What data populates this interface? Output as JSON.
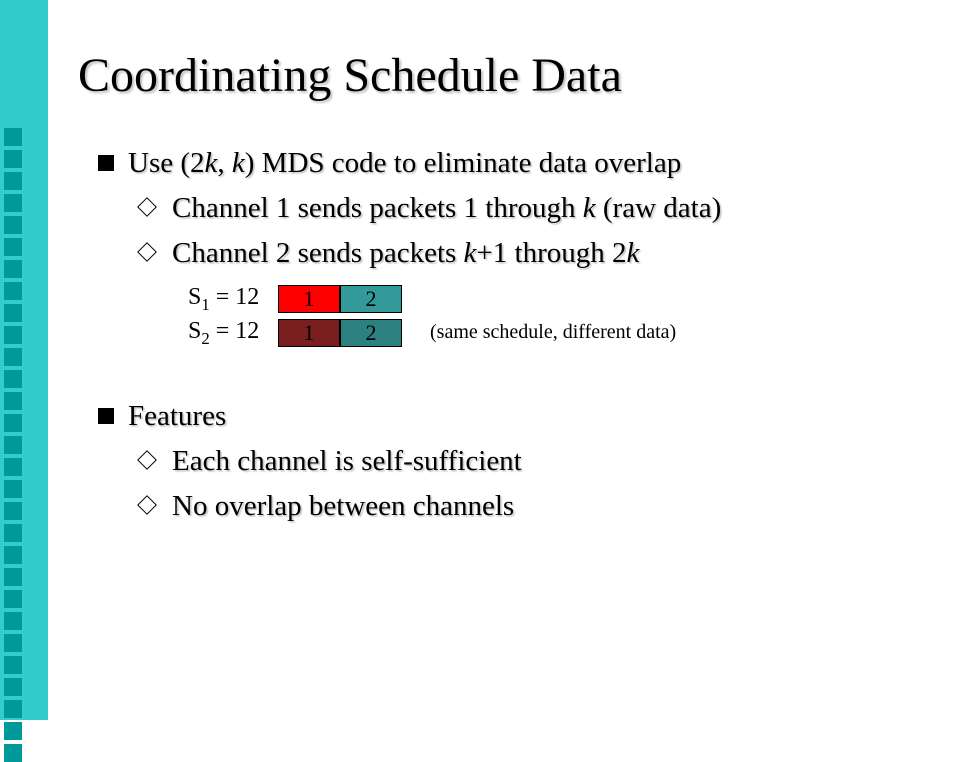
{
  "title": "Coordinating Schedule Data",
  "bullets": {
    "b1": "Use (2",
    "b1_k1": "k",
    "b1_mid": ", ",
    "b1_k2": "k",
    "b1_end": ") MDS code to eliminate data overlap",
    "b1a_pre": "Channel 1 sends packets 1 through ",
    "b1a_k": "k",
    "b1a_end": " (raw data)",
    "b1b_pre": "Channel 2 sends packets ",
    "b1b_k1": "k",
    "b1b_mid": "+1 through 2",
    "b1b_k2": "k",
    "b2": "Features",
    "b2a": "Each channel is self-sufficient",
    "b2b": "No overlap between channels"
  },
  "diagram": {
    "s1_label_pre": "S",
    "s1_sub": "1",
    "s1_eq": " = 12",
    "s2_label_pre": "S",
    "s2_sub": "2",
    "s2_eq": " = 12",
    "row1_cells": [
      "1",
      "2"
    ],
    "row2_cells": [
      "1",
      "2"
    ],
    "row1_colors": [
      "#ff0000",
      "#339999"
    ],
    "row2_colors": [
      "#7a1f1f",
      "#2d8080"
    ],
    "note": "(same schedule, different data)"
  },
  "sidebar": {
    "square_count": 29,
    "bg": "#33cccc",
    "square_color": "#009999"
  }
}
